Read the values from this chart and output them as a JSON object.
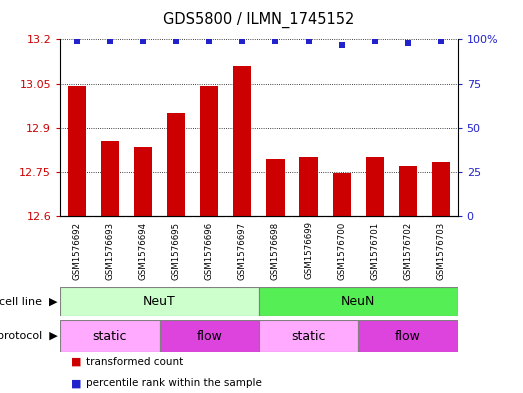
{
  "title": "GDS5800 / ILMN_1745152",
  "samples": [
    "GSM1576692",
    "GSM1576693",
    "GSM1576694",
    "GSM1576695",
    "GSM1576696",
    "GSM1576697",
    "GSM1576698",
    "GSM1576699",
    "GSM1576700",
    "GSM1576701",
    "GSM1576702",
    "GSM1576703"
  ],
  "bar_values": [
    13.04,
    12.855,
    12.835,
    12.95,
    13.04,
    13.11,
    12.795,
    12.8,
    12.745,
    12.8,
    12.77,
    12.785
  ],
  "percentile_values": [
    99,
    99,
    99,
    99,
    99,
    99,
    99,
    99,
    97,
    99,
    98,
    99
  ],
  "bar_color": "#cc0000",
  "percentile_color": "#2222cc",
  "ylim_left": [
    12.6,
    13.2
  ],
  "ylim_right": [
    0,
    100
  ],
  "yticks_left": [
    12.6,
    12.75,
    12.9,
    13.05,
    13.2
  ],
  "yticks_right": [
    0,
    25,
    50,
    75,
    100
  ],
  "cell_line_groups": [
    {
      "label": "NeuT",
      "start": 0,
      "end": 6,
      "color": "#ccffcc"
    },
    {
      "label": "NeuN",
      "start": 6,
      "end": 12,
      "color": "#55ee55"
    }
  ],
  "protocol_groups": [
    {
      "label": "static",
      "start": 0,
      "end": 3,
      "color": "#ffaaff"
    },
    {
      "label": "flow",
      "start": 3,
      "end": 6,
      "color": "#dd44dd"
    },
    {
      "label": "static",
      "start": 6,
      "end": 9,
      "color": "#ffaaff"
    },
    {
      "label": "flow",
      "start": 9,
      "end": 12,
      "color": "#dd44dd"
    }
  ],
  "legend_items": [
    {
      "label": "transformed count",
      "color": "#cc0000",
      "marker": "s"
    },
    {
      "label": "percentile rank within the sample",
      "color": "#2222cc",
      "marker": "s"
    }
  ],
  "sample_bg_color": "#cccccc",
  "plot_bg_color": "#ffffff",
  "grid_color": "#000000"
}
